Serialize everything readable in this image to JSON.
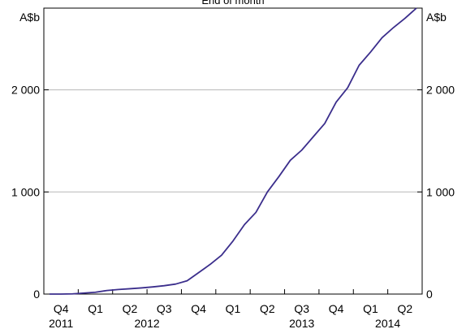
{
  "chart_data": {
    "type": "line",
    "title": "End of month",
    "y_unit_left": "A$b",
    "y_unit_right": "A$b",
    "ylim": [
      0,
      2800
    ],
    "y_ticks": [
      0,
      1000,
      2000
    ],
    "y_tick_labels": [
      "0",
      "1 000",
      "2 000"
    ],
    "grid": "horizontal",
    "x_quarters": [
      "Q4",
      "Q1",
      "Q2",
      "Q3",
      "Q4",
      "Q1",
      "Q2",
      "Q3",
      "Q4",
      "Q1",
      "Q2"
    ],
    "x_years": [
      {
        "label": "2011",
        "quarter_index": 0
      },
      {
        "label": "2012",
        "quarter_index": 2.5
      },
      {
        "label": "2013",
        "quarter_index": 7
      },
      {
        "label": "2014",
        "quarter_index": 9.5
      }
    ],
    "x_start": "2011-10",
    "x_end": "2014-06",
    "series": [
      {
        "color": "#3b2e8c",
        "x": [
          "2011-10",
          "2011-11",
          "2011-12",
          "2012-01",
          "2012-02",
          "2012-03",
          "2012-04",
          "2012-05",
          "2012-06",
          "2012-07",
          "2012-08",
          "2012-09",
          "2012-10",
          "2012-11",
          "2012-12",
          "2013-01",
          "2013-02",
          "2013-03",
          "2013-04",
          "2013-05",
          "2013-06",
          "2013-07",
          "2013-08",
          "2013-09",
          "2013-10",
          "2013-11",
          "2013-12",
          "2014-01",
          "2014-02",
          "2014-03",
          "2014-04",
          "2014-05",
          "2014-06"
        ],
        "values": [
          0,
          0,
          2,
          10,
          18,
          35,
          45,
          52,
          60,
          70,
          82,
          98,
          130,
          210,
          290,
          380,
          520,
          680,
          800,
          1000,
          1150,
          1310,
          1410,
          1540,
          1670,
          1880,
          2020,
          2240,
          2370,
          2510,
          2610,
          2700,
          2800
        ]
      }
    ]
  }
}
